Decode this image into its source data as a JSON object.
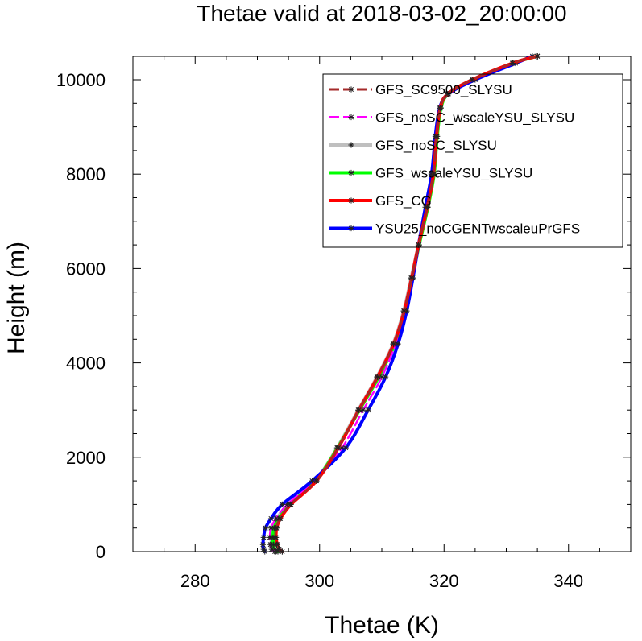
{
  "chart_data": {
    "type": "line",
    "title": "Thetae valid at 2018-03-02_20:00:00",
    "xlabel": "Thetae (K)",
    "ylabel": "Height (m)",
    "xlim": [
      270,
      350
    ],
    "ylim": [
      0,
      10500
    ],
    "xticks": [
      280,
      300,
      320,
      340
    ],
    "yticks": [
      0,
      2000,
      4000,
      6000,
      8000,
      10000
    ],
    "grid": false,
    "legend_position": "top-right",
    "series": [
      {
        "name": "GFS_SC9500_SLYSU",
        "color": "#a52a2a",
        "dash": "dashed",
        "x": [
          294.0,
          293.4,
          293.1,
          292.9,
          293.0,
          293.6,
          295.3,
          299.5,
          303.0,
          306.3,
          309.3,
          311.9,
          313.6,
          314.8,
          315.9,
          317.3,
          318.3,
          318.8,
          319.4,
          320.6,
          324.5,
          331.0,
          335.0
        ],
        "y": [
          0,
          50,
          150,
          300,
          500,
          700,
          1000,
          1500,
          2200,
          3000,
          3700,
          4400,
          5100,
          5800,
          6500,
          7300,
          8000,
          8800,
          9400,
          9700,
          10000,
          10350,
          10500
        ]
      },
      {
        "name": "GFS_noSC_wscaleYSU_SLYSU",
        "color": "#ff00ff",
        "dash": "dashed",
        "x": [
          292.8,
          292.3,
          292.1,
          292.0,
          292.2,
          293.0,
          294.8,
          299.2,
          303.6,
          307.0,
          310.0,
          312.2,
          313.9,
          314.9,
          315.9,
          317.3,
          318.3,
          318.8,
          319.4,
          320.6,
          324.5,
          331.0,
          335.0
        ],
        "y": [
          0,
          50,
          150,
          300,
          500,
          700,
          1000,
          1500,
          2200,
          3000,
          3700,
          4400,
          5100,
          5800,
          6500,
          7300,
          8000,
          8800,
          9400,
          9700,
          10000,
          10350,
          10500
        ]
      },
      {
        "name": "GFS_noSC_SLYSU",
        "color": "#bfbfbf",
        "dash": "solid",
        "x": [
          293.0,
          292.5,
          292.3,
          292.2,
          292.4,
          293.1,
          295.0,
          299.3,
          302.8,
          306.2,
          309.2,
          311.8,
          313.5,
          314.7,
          315.9,
          317.3,
          318.3,
          318.8,
          319.4,
          320.6,
          324.5,
          331.0,
          335.0
        ],
        "y": [
          0,
          50,
          150,
          300,
          500,
          700,
          1000,
          1500,
          2200,
          3000,
          3700,
          4400,
          5100,
          5800,
          6500,
          7300,
          8000,
          8800,
          9400,
          9700,
          10000,
          10350,
          10500
        ]
      },
      {
        "name": "GFS_wscaleYSU_SLYSU",
        "color": "#00ff00",
        "dash": "solid",
        "x": [
          293.3,
          292.8,
          292.6,
          292.5,
          292.7,
          293.4,
          295.2,
          299.4,
          302.9,
          306.4,
          309.5,
          312.1,
          313.8,
          314.9,
          316.0,
          317.4,
          318.4,
          318.9,
          319.5,
          320.7,
          324.6,
          331.1,
          335.0
        ],
        "y": [
          0,
          50,
          150,
          300,
          500,
          700,
          1000,
          1500,
          2200,
          3000,
          3700,
          4400,
          5100,
          5800,
          6500,
          7300,
          8000,
          8800,
          9400,
          9700,
          10000,
          10350,
          10500
        ]
      },
      {
        "name": "GFS_CG",
        "color": "#ff0000",
        "dash": "solid",
        "x": [
          294.0,
          293.5,
          293.2,
          293.0,
          293.1,
          293.7,
          295.4,
          299.5,
          303.0,
          306.3,
          309.3,
          311.9,
          313.6,
          314.8,
          315.9,
          317.3,
          318.3,
          318.8,
          319.4,
          320.6,
          324.5,
          331.0,
          335.0
        ],
        "y": [
          0,
          50,
          150,
          300,
          500,
          700,
          1000,
          1500,
          2200,
          3000,
          3700,
          4400,
          5100,
          5800,
          6500,
          7300,
          8000,
          8800,
          9400,
          9700,
          10000,
          10350,
          10500
        ]
      },
      {
        "name": "YSU25_noCGENTwscaleuPrGFS",
        "color": "#0000ff",
        "dash": "solid",
        "x": [
          291.2,
          291.0,
          290.9,
          291.0,
          291.3,
          292.2,
          294.0,
          298.8,
          304.2,
          307.8,
          310.6,
          312.6,
          314.0,
          315.0,
          315.9,
          317.0,
          318.0,
          318.6,
          319.3,
          320.7,
          325.0,
          331.5,
          334.2
        ],
        "y": [
          0,
          50,
          150,
          300,
          500,
          700,
          1000,
          1500,
          2200,
          3000,
          3700,
          4400,
          5100,
          5800,
          6500,
          7300,
          8000,
          8800,
          9400,
          9700,
          10000,
          10350,
          10500
        ]
      }
    ]
  }
}
